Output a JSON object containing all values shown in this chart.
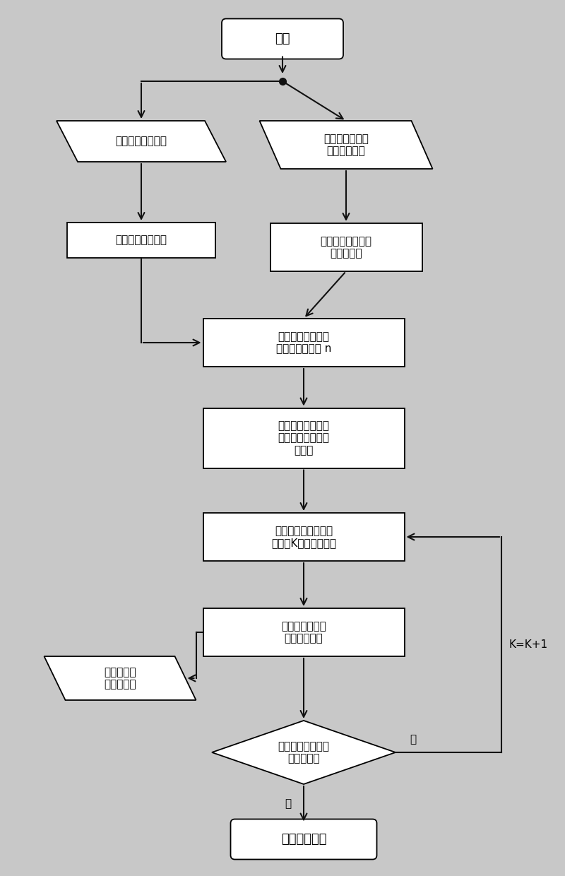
{
  "bg_color": "#c8c8c8",
  "box_facecolor": "#ffffff",
  "box_edgecolor": "#000000",
  "arrow_color": "#111111",
  "text_color": "#000000",
  "nodes": {
    "start": {
      "label": "开始"
    },
    "inL": {
      "label": "总时间和加速时间"
    },
    "inR": {
      "label": "输入初始关节角\n度和目标位姿"
    },
    "bL": {
      "label": "确定末端最大速度"
    },
    "bR": {
      "label": "求解插补直线距离\n及姿态变化"
    },
    "c1": {
      "label": "确定末端线速度曲\n线和总运动步长 n"
    },
    "c2": {
      "label": "求解每步位姿插补\n增量，并确定末端\n角速度"
    },
    "c3": {
      "label": "利用广义雅可比矩阵\n反解第K步关节角速度"
    },
    "c4": {
      "label": "求解当前步关节\n角及基座位姿"
    },
    "outL": {
      "label": "输出当前步\n的关节转角"
    },
    "diamond": {
      "label": "判断当前步数是否\n到达总步数"
    },
    "end": {
      "label": "路径规划结束"
    }
  },
  "labels": {
    "yes": "是",
    "no": "否",
    "kplus": "K=K+1"
  }
}
